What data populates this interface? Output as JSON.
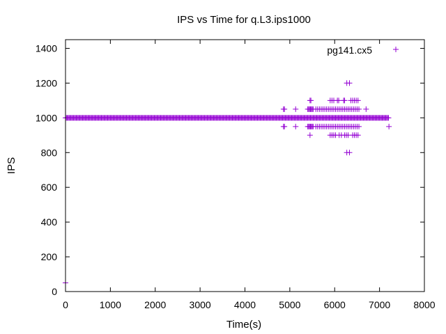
{
  "chart_data": {
    "type": "scatter",
    "title": "IPS vs Time for q.L3.ips1000",
    "xlabel": "Time(s)",
    "ylabel": "IPS",
    "xlim": [
      0,
      8000
    ],
    "ylim": [
      0,
      1450
    ],
    "xticks": [
      0,
      1000,
      2000,
      3000,
      4000,
      5000,
      6000,
      7000,
      8000
    ],
    "yticks": [
      0,
      200,
      400,
      600,
      800,
      1000,
      1200,
      1400
    ],
    "legend_position": "top-right",
    "marker": "plus",
    "series": [
      {
        "name": "pg141.cx5",
        "color": "#9400d3",
        "dense_band": {
          "y": 1000,
          "x_start": 0,
          "x_end": 7200,
          "x_step": 20
        },
        "points": [
          [
            0,
            50
          ],
          [
            4860,
            1050
          ],
          [
            4880,
            1050
          ],
          [
            4860,
            950
          ],
          [
            4880,
            950
          ],
          [
            5130,
            1050
          ],
          [
            5130,
            950
          ],
          [
            5400,
            1050
          ],
          [
            5420,
            1050
          ],
          [
            5440,
            1050
          ],
          [
            5460,
            1050
          ],
          [
            5480,
            1050
          ],
          [
            5500,
            1050
          ],
          [
            5520,
            1050
          ],
          [
            5400,
            950
          ],
          [
            5420,
            950
          ],
          [
            5440,
            950
          ],
          [
            5460,
            950
          ],
          [
            5480,
            950
          ],
          [
            5500,
            950
          ],
          [
            5520,
            950
          ],
          [
            5450,
            1100
          ],
          [
            5470,
            1100
          ],
          [
            5450,
            900
          ],
          [
            5580,
            1050
          ],
          [
            5620,
            1050
          ],
          [
            5660,
            1050
          ],
          [
            5700,
            1050
          ],
          [
            5740,
            1050
          ],
          [
            5780,
            1050
          ],
          [
            5820,
            1050
          ],
          [
            5860,
            1050
          ],
          [
            5900,
            1050
          ],
          [
            5940,
            1050
          ],
          [
            5980,
            1050
          ],
          [
            6020,
            1050
          ],
          [
            6060,
            1050
          ],
          [
            6100,
            1050
          ],
          [
            6140,
            1050
          ],
          [
            6180,
            1050
          ],
          [
            6220,
            1050
          ],
          [
            6260,
            1050
          ],
          [
            6300,
            1050
          ],
          [
            6340,
            1050
          ],
          [
            6380,
            1050
          ],
          [
            6420,
            1050
          ],
          [
            6460,
            1050
          ],
          [
            6500,
            1050
          ],
          [
            6540,
            1050
          ],
          [
            5580,
            950
          ],
          [
            5620,
            950
          ],
          [
            5660,
            950
          ],
          [
            5700,
            950
          ],
          [
            5740,
            950
          ],
          [
            5780,
            950
          ],
          [
            5820,
            950
          ],
          [
            5860,
            950
          ],
          [
            5900,
            950
          ],
          [
            5940,
            950
          ],
          [
            5980,
            950
          ],
          [
            6020,
            950
          ],
          [
            6060,
            950
          ],
          [
            6100,
            950
          ],
          [
            6140,
            950
          ],
          [
            6180,
            950
          ],
          [
            6220,
            950
          ],
          [
            6260,
            950
          ],
          [
            6300,
            950
          ],
          [
            6340,
            950
          ],
          [
            6380,
            950
          ],
          [
            6420,
            950
          ],
          [
            6460,
            950
          ],
          [
            6500,
            950
          ],
          [
            6540,
            950
          ],
          [
            6700,
            1050
          ],
          [
            7210,
            950
          ],
          [
            5900,
            1100
          ],
          [
            5940,
            1100
          ],
          [
            5980,
            1100
          ],
          [
            6060,
            1100
          ],
          [
            6090,
            1100
          ],
          [
            6200,
            1100
          ],
          [
            6220,
            1100
          ],
          [
            6360,
            1100
          ],
          [
            6400,
            1100
          ],
          [
            6440,
            1100
          ],
          [
            6480,
            1100
          ],
          [
            6520,
            1100
          ],
          [
            5900,
            900
          ],
          [
            5940,
            900
          ],
          [
            5980,
            900
          ],
          [
            6020,
            900
          ],
          [
            6100,
            900
          ],
          [
            6150,
            900
          ],
          [
            6220,
            900
          ],
          [
            6260,
            900
          ],
          [
            6300,
            900
          ],
          [
            6400,
            900
          ],
          [
            6440,
            900
          ],
          [
            6480,
            900
          ],
          [
            6520,
            900
          ],
          [
            6270,
            1200
          ],
          [
            6330,
            1200
          ],
          [
            6270,
            800
          ],
          [
            6330,
            800
          ]
        ]
      }
    ]
  }
}
